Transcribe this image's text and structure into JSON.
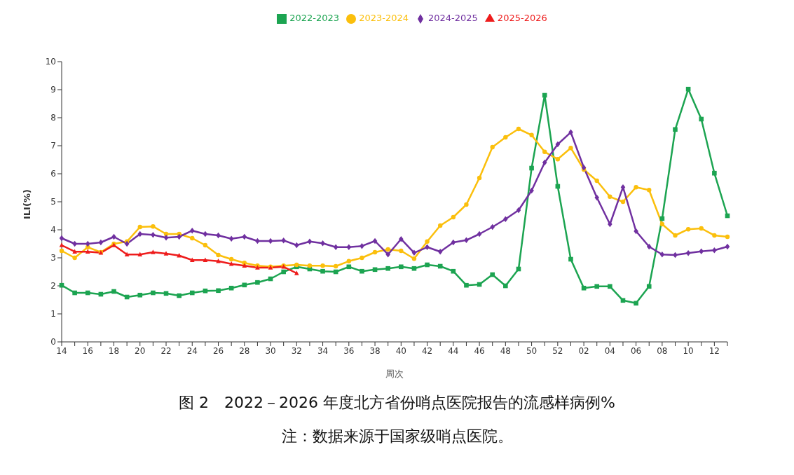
{
  "chart_data": {
    "type": "line",
    "title": "图 2　2022－2026 年度北方省份哨点医院报告的流感样病例%",
    "annotations": [
      "注：数据来源于国家级哨点医院。"
    ],
    "xlabel": "周次",
    "ylabel": "ILI(%)",
    "categories": [
      "14",
      null,
      "16",
      null,
      "18",
      null,
      "20",
      null,
      "22",
      null,
      "24",
      null,
      "26",
      null,
      "28",
      null,
      "30",
      null,
      "32",
      null,
      "34",
      null,
      "36",
      null,
      "38",
      null,
      "40",
      null,
      "42",
      null,
      "44",
      null,
      "46",
      null,
      "48",
      null,
      "50",
      null,
      "52",
      null,
      "02",
      null,
      "04",
      null,
      "06",
      null,
      "08",
      null,
      "10",
      null,
      "12",
      null
    ],
    "ylim": [
      0,
      10
    ],
    "yticks": [
      0,
      1,
      2,
      3,
      4,
      5,
      6,
      7,
      8,
      9,
      10
    ],
    "grid": false,
    "legend": "top",
    "series": [
      {
        "name": "2022-2023",
        "color": "#1ca451",
        "marker": "square",
        "values": [
          2.02,
          1.75,
          1.75,
          1.7,
          1.8,
          1.6,
          1.67,
          1.75,
          1.73,
          1.65,
          1.75,
          1.82,
          1.83,
          1.92,
          2.03,
          2.12,
          2.25,
          2.5,
          2.68,
          2.6,
          2.52,
          2.5,
          2.68,
          2.52,
          2.58,
          2.62,
          2.68,
          2.62,
          2.75,
          2.7,
          2.52,
          2.02,
          2.05,
          2.4,
          2.0,
          2.6,
          6.2,
          8.8,
          5.55,
          2.95,
          1.92,
          1.98,
          1.98,
          1.48,
          1.38,
          1.98,
          4.4,
          7.58,
          9.02,
          7.95,
          6.02,
          4.5
        ]
      },
      {
        "name": "2023-2024",
        "color": "#fbbf0c",
        "marker": "circle",
        "values": [
          3.25,
          3.0,
          3.38,
          3.2,
          3.5,
          3.58,
          4.1,
          4.12,
          3.85,
          3.85,
          3.7,
          3.45,
          3.1,
          2.95,
          2.82,
          2.72,
          2.68,
          2.72,
          2.75,
          2.72,
          2.72,
          2.7,
          2.88,
          3.0,
          3.2,
          3.3,
          3.25,
          2.97,
          3.58,
          4.15,
          4.45,
          4.9,
          5.85,
          6.95,
          7.3,
          7.6,
          7.38,
          6.78,
          6.52,
          6.92,
          6.15,
          5.75,
          5.18,
          5.0,
          5.52,
          5.42,
          4.2,
          3.8,
          4.02,
          4.05,
          3.8,
          3.75
        ]
      },
      {
        "name": "2024-2025",
        "color": "#7030a0",
        "marker": "diamond",
        "values": [
          3.7,
          3.5,
          3.5,
          3.55,
          3.75,
          3.5,
          3.85,
          3.82,
          3.72,
          3.75,
          3.97,
          3.85,
          3.8,
          3.68,
          3.75,
          3.6,
          3.6,
          3.62,
          3.45,
          3.58,
          3.52,
          3.38,
          3.38,
          3.42,
          3.6,
          3.12,
          3.67,
          3.18,
          3.38,
          3.22,
          3.55,
          3.63,
          3.85,
          4.1,
          4.38,
          4.7,
          5.4,
          6.4,
          7.05,
          7.48,
          6.22,
          5.15,
          4.2,
          5.52,
          3.95,
          3.4,
          3.12,
          3.1,
          3.17,
          3.23,
          3.27,
          3.4
        ]
      },
      {
        "name": "2025-2026",
        "color": "#ee1c1c",
        "marker": "triangle",
        "values": [
          3.45,
          3.22,
          3.22,
          3.18,
          3.45,
          3.12,
          3.12,
          3.2,
          3.15,
          3.08,
          2.92,
          2.92,
          2.88,
          2.78,
          2.72,
          2.65,
          2.65,
          2.68,
          2.45,
          null,
          null,
          null,
          null,
          null,
          null,
          null,
          null,
          null,
          null,
          null,
          null,
          null,
          null,
          null,
          null,
          null,
          null,
          null,
          null,
          null,
          null,
          null,
          null,
          null,
          null,
          null,
          null,
          null,
          null,
          null,
          null,
          null
        ]
      }
    ]
  }
}
